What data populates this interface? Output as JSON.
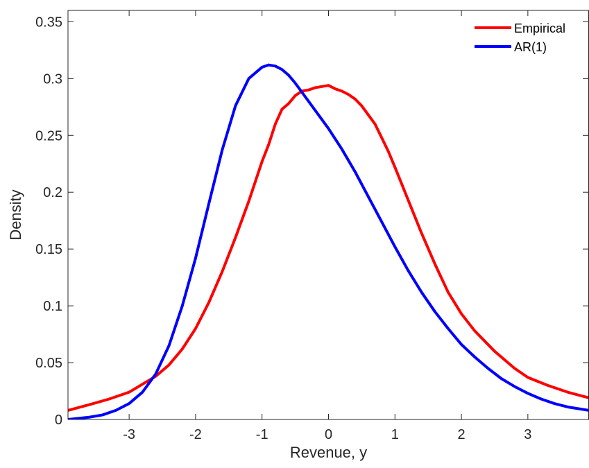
{
  "chart_data": {
    "type": "line",
    "xlabel": "Revenue, y",
    "ylabel": "Density",
    "xlim": [
      -3.92,
      3.92
    ],
    "ylim": [
      0,
      0.36
    ],
    "xticks": [
      -3,
      -2,
      -1,
      0,
      1,
      2,
      3
    ],
    "yticks": [
      0,
      0.05,
      0.1,
      0.15,
      0.2,
      0.25,
      0.3,
      0.35
    ],
    "xtick_labels": [
      "-3",
      "-2",
      "-1",
      "0",
      "1",
      "2",
      "3"
    ],
    "ytick_labels": [
      "0",
      "0.05",
      "0.1",
      "0.15",
      "0.2",
      "0.25",
      "0.3",
      "0.35"
    ],
    "grid": false,
    "box": true,
    "legend_position": "top-right",
    "series": [
      {
        "name": "Empirical",
        "color": "#ff0000",
        "x": [
          -3.92,
          -3.6,
          -3.3,
          -3.0,
          -2.8,
          -2.6,
          -2.4,
          -2.2,
          -2.0,
          -1.8,
          -1.6,
          -1.4,
          -1.2,
          -1.0,
          -0.9,
          -0.8,
          -0.7,
          -0.6,
          -0.5,
          -0.4,
          -0.3,
          -0.2,
          -0.1,
          0.0,
          0.1,
          0.2,
          0.3,
          0.4,
          0.5,
          0.6,
          0.7,
          0.8,
          0.9,
          1.0,
          1.2,
          1.4,
          1.6,
          1.8,
          2.0,
          2.2,
          2.5,
          2.8,
          3.0,
          3.3,
          3.6,
          3.92
        ],
        "y": [
          0.008,
          0.013,
          0.018,
          0.024,
          0.031,
          0.038,
          0.048,
          0.062,
          0.08,
          0.103,
          0.13,
          0.16,
          0.192,
          0.227,
          0.242,
          0.26,
          0.273,
          0.278,
          0.285,
          0.289,
          0.29,
          0.292,
          0.293,
          0.294,
          0.291,
          0.289,
          0.286,
          0.282,
          0.276,
          0.268,
          0.26,
          0.248,
          0.236,
          0.222,
          0.193,
          0.164,
          0.137,
          0.112,
          0.093,
          0.078,
          0.06,
          0.045,
          0.037,
          0.03,
          0.024,
          0.019
        ]
      },
      {
        "name": "AR(1)",
        "color": "#0000ff",
        "x": [
          -3.92,
          -3.6,
          -3.4,
          -3.2,
          -3.0,
          -2.8,
          -2.6,
          -2.4,
          -2.2,
          -2.0,
          -1.8,
          -1.6,
          -1.4,
          -1.2,
          -1.0,
          -0.9,
          -0.8,
          -0.7,
          -0.6,
          -0.5,
          -0.4,
          -0.3,
          -0.2,
          0.0,
          0.2,
          0.4,
          0.6,
          0.8,
          1.0,
          1.2,
          1.4,
          1.6,
          1.8,
          2.0,
          2.2,
          2.4,
          2.6,
          2.8,
          3.0,
          3.2,
          3.4,
          3.6,
          3.92
        ],
        "y": [
          0.0,
          0.002,
          0.004,
          0.008,
          0.014,
          0.024,
          0.04,
          0.065,
          0.1,
          0.142,
          0.19,
          0.237,
          0.276,
          0.3,
          0.31,
          0.312,
          0.311,
          0.308,
          0.303,
          0.296,
          0.288,
          0.28,
          0.272,
          0.256,
          0.238,
          0.218,
          0.196,
          0.174,
          0.152,
          0.131,
          0.112,
          0.095,
          0.08,
          0.066,
          0.055,
          0.045,
          0.036,
          0.029,
          0.023,
          0.018,
          0.014,
          0.011,
          0.008
        ]
      }
    ]
  }
}
